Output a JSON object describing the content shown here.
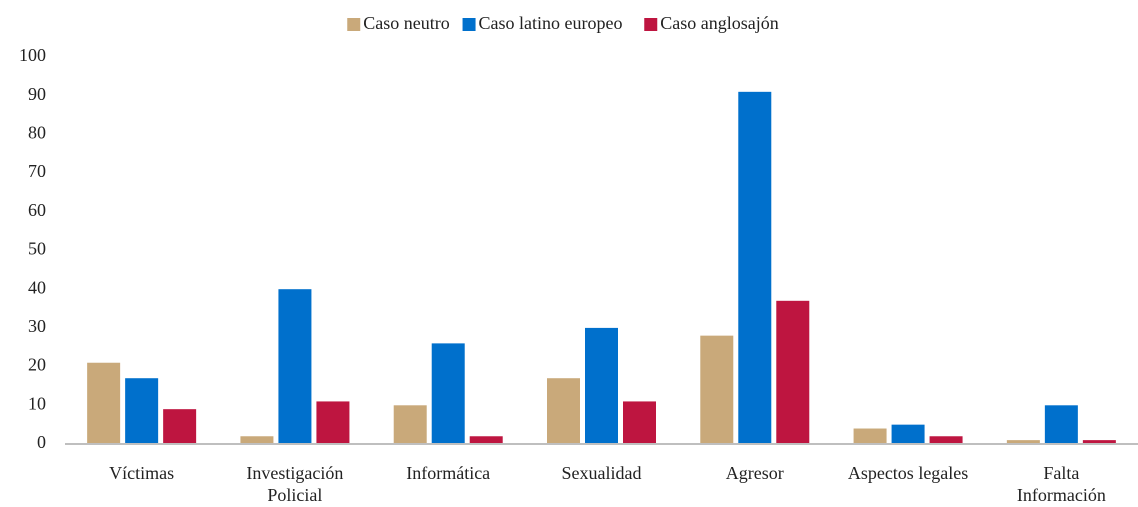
{
  "chart_data": {
    "type": "bar",
    "categories": [
      "Víctimas",
      "Investigación\nPolicial",
      "Informática",
      "Sexualidad",
      "Agresor",
      "Aspectos legales",
      "Falta\nInformación"
    ],
    "series": [
      {
        "name": "Caso neutro",
        "color": "#c9a97a",
        "values": [
          21,
          2,
          10,
          17,
          28,
          4,
          1
        ]
      },
      {
        "name": "Caso latino europeo",
        "color": "#0070cc",
        "values": [
          17,
          40,
          26,
          30,
          91,
          5,
          10
        ]
      },
      {
        "name": "Caso anglosajón",
        "color": "#be1540",
        "values": [
          9,
          11,
          2,
          11,
          37,
          2,
          1
        ]
      }
    ],
    "ylim": [
      0,
      100
    ],
    "yticks": [
      0,
      10,
      20,
      30,
      40,
      50,
      60,
      70,
      80,
      90,
      100
    ],
    "grid": false,
    "legend": "top"
  }
}
